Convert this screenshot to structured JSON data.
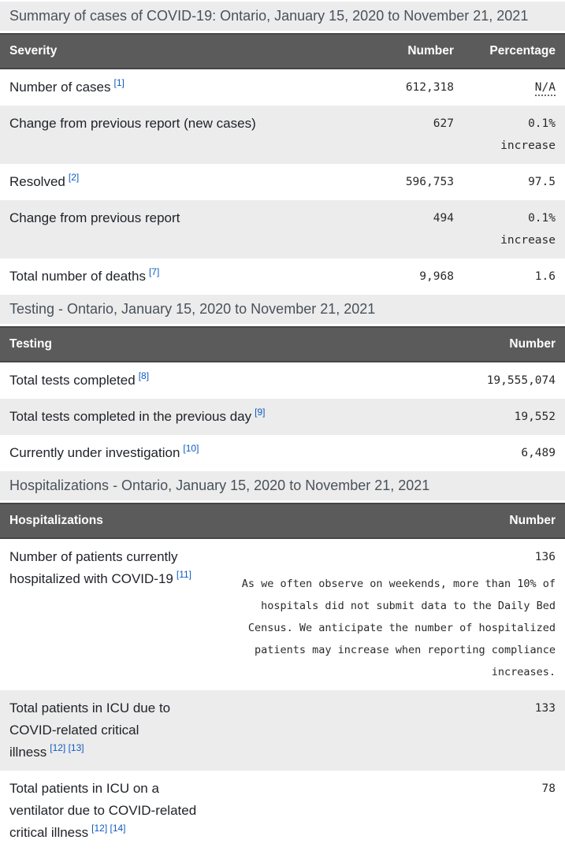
{
  "colors": {
    "table_header_bg": "#5b5b5b",
    "stripe_bg": "#ececec",
    "footnote_link": "#0d5bc1"
  },
  "summary": {
    "title": "Summary of cases of COVID-19: Ontario, January 15, 2020 to November 21, 2021",
    "columns": [
      "Severity",
      "Number",
      "Percentage"
    ],
    "rows": [
      {
        "label": "Number of cases",
        "refs": "[1]",
        "number": "612,318",
        "percentage": "N/A"
      },
      {
        "label": "Change from previous report (new cases)",
        "number": "627",
        "percentage": "0.1%",
        "percentage_note": "increase"
      },
      {
        "label": "Resolved",
        "refs": "[2]",
        "number": "596,753",
        "percentage": "97.5"
      },
      {
        "label": "Change from previous report",
        "number": "494",
        "percentage": "0.1%",
        "percentage_note": "increase"
      },
      {
        "label": "Total number of deaths",
        "refs": "[7]",
        "number": "9,968",
        "percentage": "1.6"
      }
    ]
  },
  "testing": {
    "title": "Testing - Ontario, January 15, 2020 to November 21, 2021",
    "columns": [
      "Testing",
      "Number"
    ],
    "rows": [
      {
        "label": "Total tests completed",
        "refs": "[8]",
        "number": "19,555,074"
      },
      {
        "label": "Total tests completed in the previous day",
        "refs": "[9]",
        "number": "19,552"
      },
      {
        "label": "Currently under investigation",
        "refs": "[10]",
        "number": "6,489"
      }
    ]
  },
  "hospitalizations": {
    "title": "Hospitalizations - Ontario, January 15, 2020 to November 21, 2021",
    "columns": [
      "Hospitalizations",
      "Number"
    ],
    "rows": [
      {
        "label": "Number of patients currently hospitalized with COVID-19",
        "refs": "[11]",
        "number": "136",
        "note": "As we often observe on weekends, more than 10% of hospitals did not submit data to the Daily Bed Census. We anticipate the number of hospitalized patients may increase when reporting compliance increases."
      },
      {
        "label": "Total patients in ICU due to COVID-related critical illness",
        "refs": "[12] [13]",
        "number": "133"
      },
      {
        "label": "Total patients in ICU on a ventilator due to COVID-related critical illness",
        "refs": "[12] [14]",
        "number": "78"
      }
    ]
  }
}
